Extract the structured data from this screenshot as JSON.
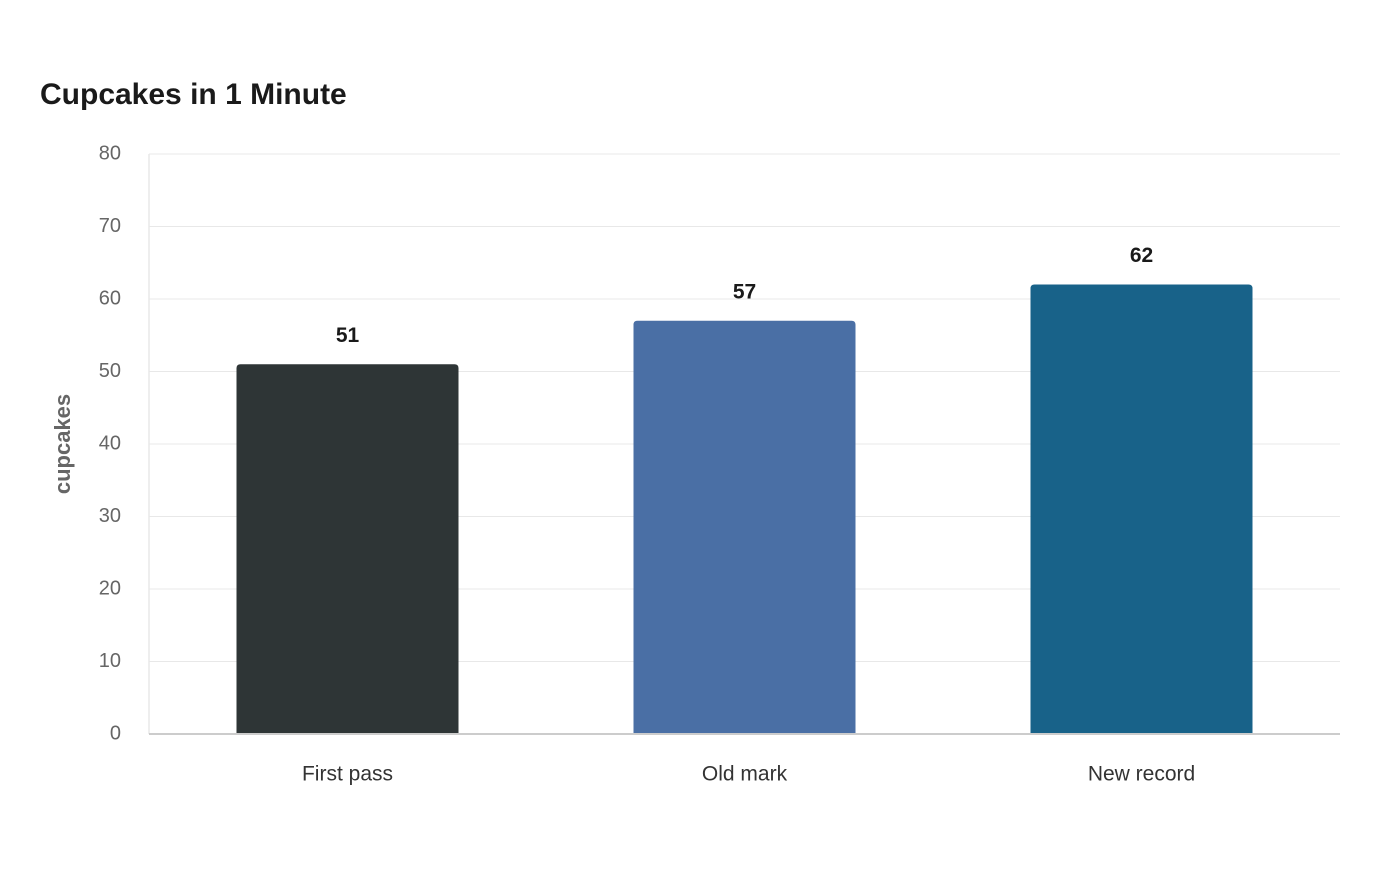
{
  "chart_data": {
    "type": "bar",
    "title": "Cupcakes in 1 Minute",
    "y_label": "cupcakes",
    "categories": [
      "First pass",
      "Old mark",
      "New record"
    ],
    "values": [
      51,
      57,
      62
    ],
    "colors": [
      "#2e3536",
      "#4a6fa5",
      "#186289"
    ],
    "ylim": [
      0,
      80
    ],
    "yticks": [
      0,
      10,
      20,
      30,
      40,
      50,
      60,
      70,
      80
    ],
    "grid": true
  }
}
